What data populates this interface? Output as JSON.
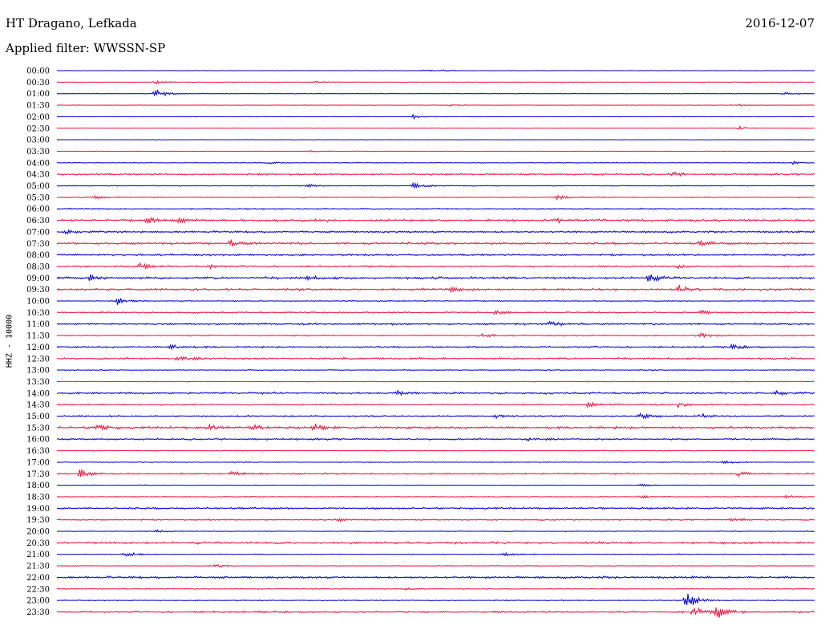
{
  "header": {
    "station": "HT Dragano, Lefkada",
    "date": "2016-12-07",
    "filter_label": "Applied filter:",
    "filter_name": "WWSSN-SP"
  },
  "chart_data": {
    "type": "line",
    "title": "HT Dragano, Lefkada",
    "ylabel": "HHZ - 10000",
    "row_labels": [
      "00:00",
      "00:30",
      "01:00",
      "01:30",
      "02:00",
      "02:30",
      "03:00",
      "03:30",
      "04:00",
      "04:30",
      "05:00",
      "05:30",
      "06:00",
      "06:30",
      "07:00",
      "07:30",
      "08:00",
      "08:30",
      "09:00",
      "09:30",
      "10:00",
      "10:30",
      "11:00",
      "11:30",
      "12:00",
      "12:30",
      "13:00",
      "13:30",
      "14:00",
      "14:30",
      "15:00",
      "15:30",
      "16:00",
      "16:30",
      "17:00",
      "17:30",
      "18:00",
      "18:30",
      "19:00",
      "19:30",
      "20:00",
      "20:30",
      "21:00",
      "21:30",
      "22:00",
      "22:30",
      "23:00",
      "23:30"
    ],
    "row_colors": [
      "#0000cc",
      "#e8163f"
    ],
    "rows": [
      {
        "noise": 0.3,
        "events": [
          {
            "t": 0.48,
            "a": 1.2
          },
          {
            "t": 0.51,
            "a": 1.2
          }
        ]
      },
      {
        "noise": 0.3,
        "events": [
          {
            "t": 0.13,
            "a": 2
          },
          {
            "t": 0.34,
            "a": 2
          }
        ]
      },
      {
        "noise": 0.3,
        "events": [
          {
            "t": 0.13,
            "a": 6
          },
          {
            "t": 0.96,
            "a": 2
          }
        ]
      },
      {
        "noise": 0.3,
        "events": [
          {
            "t": 0.52,
            "a": 1
          },
          {
            "t": 0.9,
            "a": 1.2
          }
        ]
      },
      {
        "noise": 0.3,
        "events": [
          {
            "t": 0.47,
            "a": 3
          }
        ]
      },
      {
        "noise": 0.3,
        "events": [
          {
            "t": 0.9,
            "a": 2.5
          }
        ]
      },
      {
        "noise": 0.3,
        "events": []
      },
      {
        "noise": 0.3,
        "events": [
          {
            "t": 0.33,
            "a": 1
          }
        ]
      },
      {
        "noise": 0.4,
        "events": [
          {
            "t": 0.28,
            "a": 1.5
          },
          {
            "t": 0.97,
            "a": 2
          }
        ]
      },
      {
        "noise": 0.9,
        "events": [
          {
            "t": 0.81,
            "a": 3
          }
        ]
      },
      {
        "noise": 0.5,
        "events": [
          {
            "t": 0.33,
            "a": 2
          },
          {
            "t": 0.47,
            "a": 5
          }
        ]
      },
      {
        "noise": 0.6,
        "events": [
          {
            "t": 0.05,
            "a": 2
          },
          {
            "t": 0.66,
            "a": 2.5
          }
        ]
      },
      {
        "noise": 0.7,
        "events": []
      },
      {
        "noise": 1.2,
        "events": [
          {
            "t": 0.12,
            "a": 3.5
          },
          {
            "t": 0.16,
            "a": 2.5
          },
          {
            "t": 0.66,
            "a": 2.5
          }
        ]
      },
      {
        "noise": 1.0,
        "events": [
          {
            "t": 0.01,
            "a": 3
          }
        ]
      },
      {
        "noise": 1.2,
        "events": [
          {
            "t": 0.23,
            "a": 4
          },
          {
            "t": 0.85,
            "a": 2
          }
        ]
      },
      {
        "noise": 1.0,
        "events": []
      },
      {
        "noise": 0.9,
        "events": [
          {
            "t": 0.11,
            "a": 4
          },
          {
            "t": 0.2,
            "a": 2.5
          },
          {
            "t": 0.82,
            "a": 2.5
          }
        ]
      },
      {
        "noise": 1.2,
        "events": [
          {
            "t": 0.04,
            "a": 4
          },
          {
            "t": 0.33,
            "a": 2.5
          },
          {
            "t": 0.78,
            "a": 5
          }
        ]
      },
      {
        "noise": 1.2,
        "events": [
          {
            "t": 0.52,
            "a": 3
          },
          {
            "t": 0.82,
            "a": 5
          }
        ]
      },
      {
        "noise": 0.5,
        "events": [
          {
            "t": 0.08,
            "a": 5
          }
        ]
      },
      {
        "noise": 0.8,
        "events": [
          {
            "t": 0.58,
            "a": 2.5
          },
          {
            "t": 0.85,
            "a": 2.5
          }
        ]
      },
      {
        "noise": 1.0,
        "events": [
          {
            "t": 0.65,
            "a": 2.5
          }
        ]
      },
      {
        "noise": 0.7,
        "events": [
          {
            "t": 0.56,
            "a": 3
          },
          {
            "t": 0.85,
            "a": 2.5
          }
        ]
      },
      {
        "noise": 0.9,
        "events": [
          {
            "t": 0.15,
            "a": 3
          },
          {
            "t": 0.89,
            "a": 2.5
          }
        ]
      },
      {
        "noise": 1.0,
        "events": [
          {
            "t": 0.16,
            "a": 4
          },
          {
            "t": 0.38,
            "a": 2.5
          }
        ]
      },
      {
        "noise": 0.5,
        "events": []
      },
      {
        "noise": 0.5,
        "events": []
      },
      {
        "noise": 1.0,
        "events": [
          {
            "t": 0.45,
            "a": 3
          },
          {
            "t": 0.95,
            "a": 3
          }
        ]
      },
      {
        "noise": 0.8,
        "events": [
          {
            "t": 0.7,
            "a": 3
          },
          {
            "t": 0.82,
            "a": 3.5
          }
        ]
      },
      {
        "noise": 0.8,
        "events": [
          {
            "t": 0.58,
            "a": 2
          },
          {
            "t": 0.77,
            "a": 3
          },
          {
            "t": 0.85,
            "a": 3
          }
        ]
      },
      {
        "noise": 1.2,
        "events": [
          {
            "t": 0.05,
            "a": 5
          },
          {
            "t": 0.2,
            "a": 3.5
          },
          {
            "t": 0.26,
            "a": 3
          },
          {
            "t": 0.34,
            "a": 4
          }
        ]
      },
      {
        "noise": 0.9,
        "events": [
          {
            "t": 0.62,
            "a": 2
          }
        ]
      },
      {
        "noise": 0.5,
        "events": []
      },
      {
        "noise": 0.5,
        "events": [
          {
            "t": 0.88,
            "a": 2
          }
        ]
      },
      {
        "noise": 0.8,
        "events": [
          {
            "t": 0.03,
            "a": 6
          },
          {
            "t": 0.23,
            "a": 3
          },
          {
            "t": 0.9,
            "a": 3
          }
        ]
      },
      {
        "noise": 0.4,
        "events": [
          {
            "t": 0.77,
            "a": 1.5
          }
        ]
      },
      {
        "noise": 0.5,
        "events": [
          {
            "t": 0.77,
            "a": 2
          },
          {
            "t": 0.96,
            "a": 2
          }
        ]
      },
      {
        "noise": 1.0,
        "events": []
      },
      {
        "noise": 0.7,
        "events": [
          {
            "t": 0.37,
            "a": 2
          },
          {
            "t": 0.89,
            "a": 3
          }
        ]
      },
      {
        "noise": 0.5,
        "events": [
          {
            "t": 0.13,
            "a": 1.5
          }
        ]
      },
      {
        "noise": 1.2,
        "events": []
      },
      {
        "noise": 0.5,
        "events": [
          {
            "t": 0.09,
            "a": 3
          },
          {
            "t": 0.59,
            "a": 2.5
          }
        ]
      },
      {
        "noise": 0.4,
        "events": [
          {
            "t": 0.21,
            "a": 2
          }
        ]
      },
      {
        "noise": 1.2,
        "events": []
      },
      {
        "noise": 0.5,
        "events": [
          {
            "t": 0.46,
            "a": 1.5
          }
        ]
      },
      {
        "noise": 0.5,
        "events": [
          {
            "t": 0.83,
            "a": 12
          }
        ]
      },
      {
        "noise": 1.0,
        "events": [
          {
            "t": 0.84,
            "a": 6
          },
          {
            "t": 0.87,
            "a": 8
          }
        ]
      }
    ]
  }
}
